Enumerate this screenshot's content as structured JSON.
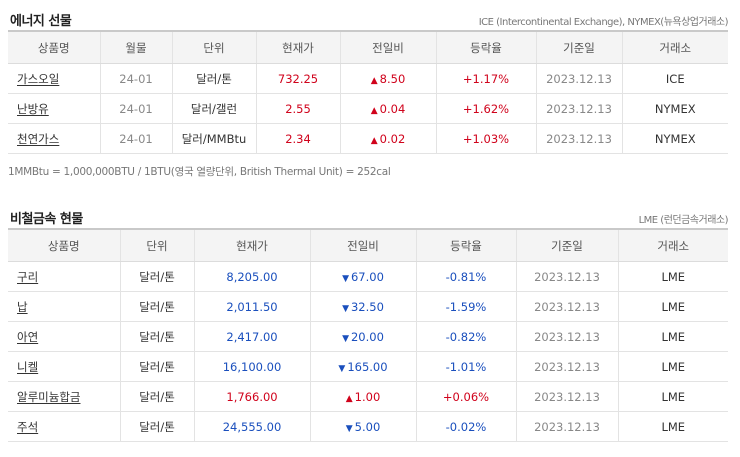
{
  "energy": {
    "title": "에너지 선물",
    "source": "ICE (Intercontinental Exchange), NYMEX(뉴욕상업거래소)",
    "headers": [
      "상품명",
      "월물",
      "단위",
      "현재가",
      "전일비",
      "등락율",
      "기준일",
      "거래소"
    ],
    "rows": [
      {
        "name": "가스오일",
        "month": "24-01",
        "unit": "달러/톤",
        "price": "732.25",
        "change": "8.50",
        "direction": "up",
        "rate": "+1.17%",
        "date": "2023.12.13",
        "exchange": "ICE"
      },
      {
        "name": "난방유",
        "month": "24-01",
        "unit": "달러/갤런",
        "price": "2.55",
        "change": "0.04",
        "direction": "up",
        "rate": "+1.62%",
        "date": "2023.12.13",
        "exchange": "NYMEX"
      },
      {
        "name": "천연가스",
        "month": "24-01",
        "unit": "달러/MMBtu",
        "price": "2.34",
        "change": "0.02",
        "direction": "up",
        "rate": "+1.03%",
        "date": "2023.12.13",
        "exchange": "NYMEX"
      }
    ],
    "note": "1MMBtu = 1,000,000BTU / 1BTU(영국 열량단위, British Thermal Unit) = 252cal"
  },
  "metals": {
    "title": "비철금속 현물",
    "source": "LME (런던금속거래소)",
    "headers": [
      "상품명",
      "단위",
      "현재가",
      "전일비",
      "등락율",
      "기준일",
      "거래소"
    ],
    "rows": [
      {
        "name": "구리",
        "unit": "달러/톤",
        "price": "8,205.00",
        "change": "67.00",
        "direction": "down",
        "rate": "-0.81%",
        "date": "2023.12.13",
        "exchange": "LME"
      },
      {
        "name": "납",
        "unit": "달러/톤",
        "price": "2,011.50",
        "change": "32.50",
        "direction": "down",
        "rate": "-1.59%",
        "date": "2023.12.13",
        "exchange": "LME"
      },
      {
        "name": "아연",
        "unit": "달러/톤",
        "price": "2,417.00",
        "change": "20.00",
        "direction": "down",
        "rate": "-0.82%",
        "date": "2023.12.13",
        "exchange": "LME"
      },
      {
        "name": "니켈",
        "unit": "달러/톤",
        "price": "16,100.00",
        "change": "165.00",
        "direction": "down",
        "rate": "-1.01%",
        "date": "2023.12.13",
        "exchange": "LME"
      },
      {
        "name": "알루미늄합금",
        "unit": "달러/톤",
        "price": "1,766.00",
        "change": "1.00",
        "direction": "up",
        "rate": "+0.06%",
        "date": "2023.12.13",
        "exchange": "LME"
      },
      {
        "name": "주석",
        "unit": "달러/톤",
        "price": "24,555.00",
        "change": "5.00",
        "direction": "down",
        "rate": "-0.02%",
        "date": "2023.12.13",
        "exchange": "LME"
      }
    ]
  },
  "arrows": {
    "up": "▲",
    "down": "▼"
  },
  "colors": {
    "up": "#d0021b",
    "down": "#1a4fbd"
  }
}
